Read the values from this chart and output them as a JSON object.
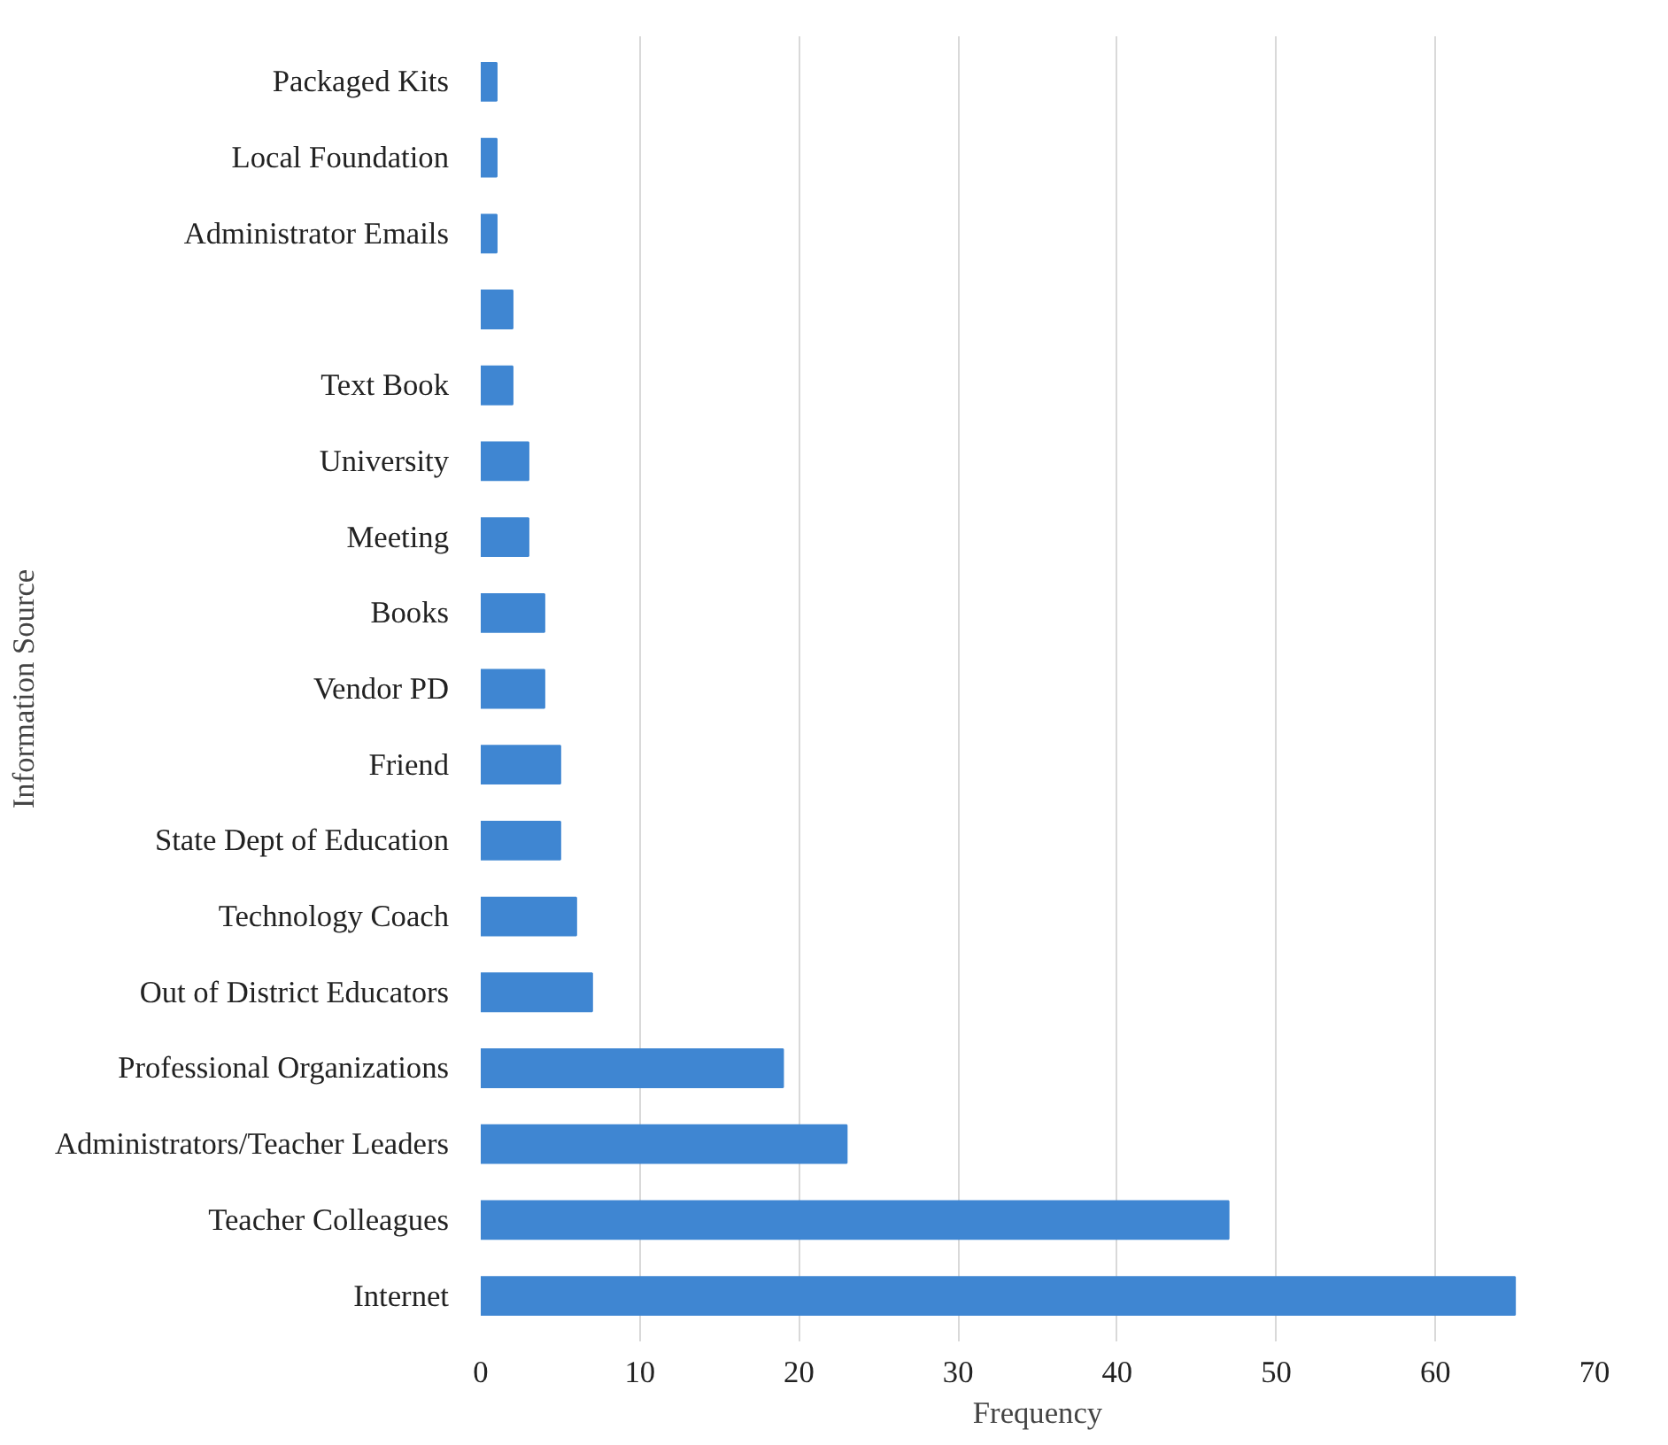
{
  "chart_data": {
    "type": "bar",
    "orientation": "horizontal",
    "xlabel": "Frequency",
    "ylabel": "Information Source",
    "categories": [
      "Packaged Kits",
      "Local Foundation",
      "Administrator Emails",
      null,
      "Text Book",
      "University",
      "Meeting",
      "Books",
      "Vendor PD",
      "Friend",
      "State Dept of Education",
      "Technology Coach",
      "Out of District Educators",
      "Professional Organizations",
      "Administrators/Teacher Leaders",
      "Teacher Colleagues",
      "Internet"
    ],
    "values": [
      1,
      1,
      1,
      2,
      2,
      3,
      3,
      4,
      4,
      5,
      5,
      6,
      7,
      19,
      23,
      47,
      65
    ],
    "color": "#3f86d2",
    "xlim": [
      0,
      70
    ],
    "xticks": [
      0,
      10,
      20,
      30,
      40,
      50,
      60,
      70
    ],
    "grid": "x"
  }
}
